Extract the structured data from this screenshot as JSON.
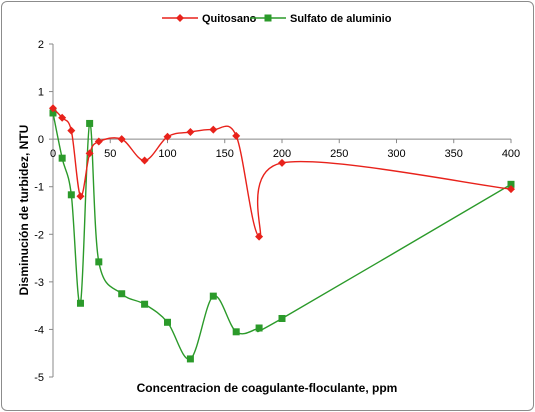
{
  "chart_data": {
    "type": "line",
    "xlabel": "Concentracion de coagulante-floculante, ppm",
    "ylabel": "Disminución de turbidez, NTU",
    "xlim": [
      0,
      400
    ],
    "ylim": [
      -5,
      2
    ],
    "xticks": [
      0,
      50,
      100,
      150,
      200,
      250,
      300,
      350,
      400
    ],
    "yticks": [
      -5,
      -4,
      -3,
      -2,
      -1,
      0,
      1,
      2
    ],
    "grid": false,
    "legend_position": "top",
    "smooth": true,
    "series": [
      {
        "name": "Quitosano",
        "color": "#e8221b",
        "marker": "diamond",
        "x": [
          0,
          8,
          16,
          24,
          32,
          40,
          60,
          80,
          100,
          120,
          140,
          160,
          180,
          200,
          400
        ],
        "y": [
          0.65,
          0.45,
          0.18,
          -1.2,
          -0.3,
          -0.05,
          0.0,
          -0.45,
          0.05,
          0.15,
          0.2,
          0.07,
          -2.05,
          -0.5,
          -1.05
        ]
      },
      {
        "name": "Sulfato de aluminio",
        "color": "#2b9a2a",
        "marker": "square",
        "x": [
          0,
          8,
          16,
          24,
          32,
          40,
          60,
          80,
          100,
          120,
          140,
          160,
          180,
          200,
          400
        ],
        "y": [
          0.55,
          -0.4,
          -1.17,
          -3.45,
          0.33,
          -2.58,
          -3.25,
          -3.47,
          -3.85,
          -4.62,
          -3.3,
          -4.05,
          -3.97,
          -3.77,
          -0.95
        ]
      }
    ]
  }
}
